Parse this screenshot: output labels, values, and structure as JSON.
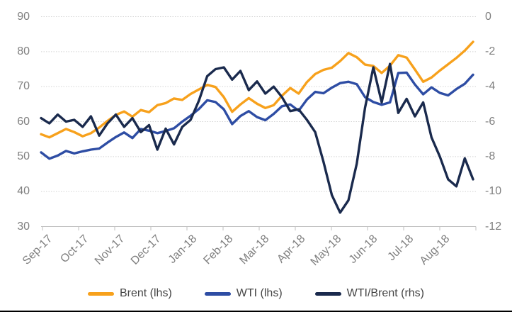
{
  "chart": {
    "background": "#FFFFFF",
    "grid_color": "#D3D3D3",
    "axis_color": "#BFBFBF",
    "axis_label_color": "#7F7F7F",
    "legend_text_color": "#454545",
    "bottom_border_color": "#000000"
  },
  "chart_data": {
    "type": "line",
    "title": "",
    "x_tick_labels": [
      "Sep-17",
      "Oct-17",
      "Nov-17",
      "Dec-17",
      "Jan-18",
      "Feb-18",
      "Mar-18",
      "Apr-18",
      "May-18",
      "Jun-18",
      "Jul-18",
      "Aug-18"
    ],
    "left_axis": {
      "ticks": [
        90,
        80,
        70,
        60,
        50,
        40,
        30
      ],
      "range": [
        30,
        90
      ]
    },
    "right_axis": {
      "ticks": [
        0,
        -2,
        -4,
        -6,
        -8,
        -10,
        -12
      ],
      "range": [
        -12,
        0
      ]
    },
    "grid": "horizontal-dotted",
    "legend_position": "bottom",
    "series": [
      {
        "name": "Brent (lhs)",
        "axis": "left",
        "color": "#F7A11C",
        "values": [
          56.4,
          55.5,
          56.7,
          57.9,
          57.0,
          55.8,
          56.7,
          58.3,
          60.2,
          61.9,
          62.9,
          61.4,
          63.3,
          62.7,
          64.7,
          65.3,
          66.6,
          66.2,
          67.9,
          69.2,
          70.5,
          69.9,
          67.0,
          62.8,
          64.9,
          66.7,
          65.1,
          63.9,
          64.7,
          67.4,
          69.6,
          68.0,
          71.3,
          73.6,
          74.8,
          75.4,
          77.3,
          79.6,
          78.4,
          76.3,
          75.9,
          73.9,
          76.0,
          79.0,
          78.3,
          74.9,
          71.4,
          72.6,
          74.6,
          76.4,
          78.2,
          80.3,
          82.8
        ]
      },
      {
        "name": "WTI (lhs)",
        "axis": "left",
        "color": "#2E4DA4",
        "values": [
          51.2,
          49.4,
          50.3,
          51.6,
          50.9,
          51.5,
          52.0,
          52.3,
          54.0,
          55.6,
          56.9,
          55.3,
          57.9,
          57.4,
          56.7,
          57.3,
          58.1,
          60.0,
          61.7,
          63.6,
          66.1,
          65.6,
          63.5,
          59.3,
          61.6,
          63.0,
          61.3,
          60.4,
          62.2,
          64.4,
          64.9,
          63.1,
          66.3,
          68.5,
          68.1,
          69.7,
          71.0,
          71.4,
          70.7,
          67.0,
          65.6,
          64.8,
          65.5,
          73.9,
          74.0,
          70.6,
          67.8,
          69.8,
          68.2,
          67.5,
          69.3,
          70.8,
          73.4
        ]
      },
      {
        "name": "WTI/Brent (rhs)",
        "axis": "right",
        "color": "#1A2A4D",
        "values": [
          -5.8,
          -6.1,
          -5.6,
          -6.0,
          -5.9,
          -6.3,
          -5.7,
          -6.8,
          -6.1,
          -5.6,
          -6.3,
          -5.8,
          -6.6,
          -6.2,
          -7.6,
          -6.4,
          -7.3,
          -6.3,
          -5.9,
          -4.8,
          -3.4,
          -3.0,
          -2.9,
          -3.6,
          -3.1,
          -4.2,
          -3.7,
          -4.4,
          -4.0,
          -4.6,
          -5.4,
          -5.3,
          -5.9,
          -6.6,
          -8.3,
          -10.2,
          -11.2,
          -10.5,
          -8.4,
          -5.2,
          -2.9,
          -4.9,
          -2.7,
          -5.5,
          -4.7,
          -5.7,
          -4.9,
          -6.9,
          -8.0,
          -9.3,
          -9.7,
          -8.1,
          -9.3
        ]
      }
    ]
  }
}
